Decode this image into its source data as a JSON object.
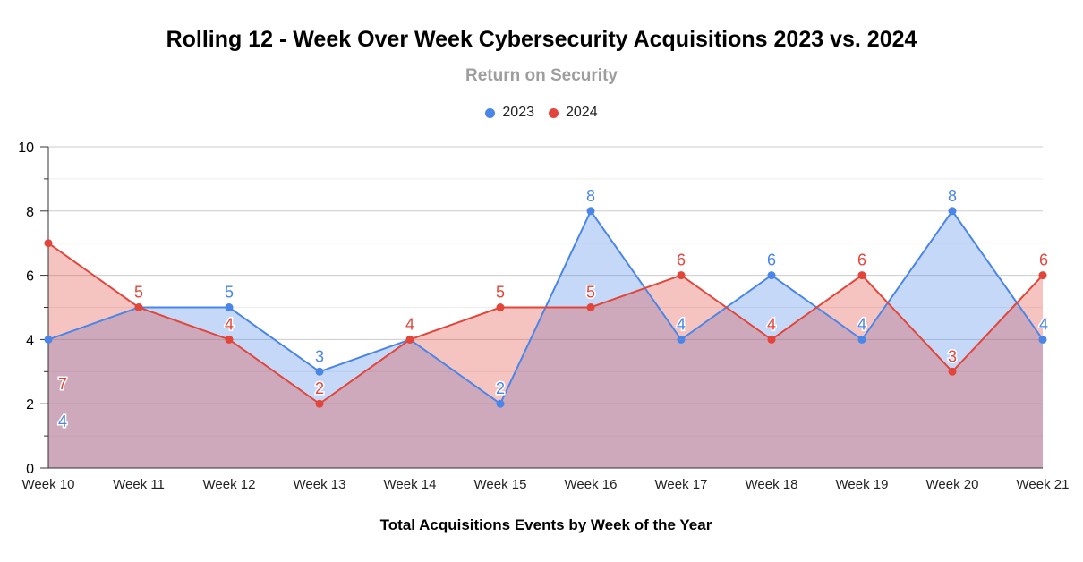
{
  "chart_data": {
    "type": "area",
    "title": "Rolling 12 - Week Over Week Cybersecurity Acquisitions 2023 vs. 2024",
    "subtitle": "Return on Security",
    "xlabel": "Total Acquisitions Events by Week of the Year",
    "ylabel": "",
    "ylim": [
      0,
      10
    ],
    "yticks": [
      0,
      2,
      4,
      6,
      8,
      10
    ],
    "categories": [
      "Week 10",
      "Week 11",
      "Week 12",
      "Week 13",
      "Week 14",
      "Week 15",
      "Week 16",
      "Week 17",
      "Week 18",
      "Week 19",
      "Week 20",
      "Week 21"
    ],
    "series": [
      {
        "name": "2023",
        "color": "#4a86e8",
        "values": [
          4,
          5,
          5,
          3,
          4,
          2,
          8,
          4,
          6,
          4,
          8,
          4
        ]
      },
      {
        "name": "2024",
        "color": "#e2463b",
        "values": [
          7,
          5,
          4,
          2,
          4,
          5,
          5,
          6,
          4,
          6,
          3,
          6
        ]
      }
    ],
    "legend_position": "top-center",
    "grid": true
  }
}
